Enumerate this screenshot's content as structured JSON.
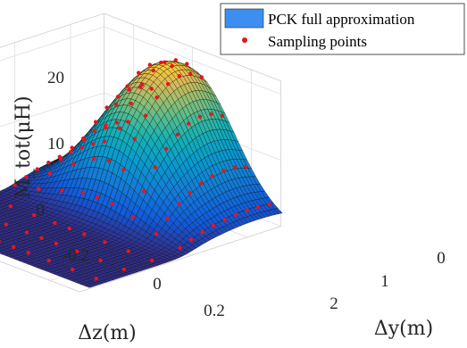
{
  "chart_data": {
    "type": "surface3d",
    "zlabel": "M_tot(μH)",
    "xlabel": "Δz(m)",
    "ylabel": "Δy(m)",
    "z_ticks": [
      "0",
      "10",
      "20"
    ],
    "x_ticks": [
      "-0.2",
      "0",
      "0.2"
    ],
    "y_ticks": [
      "0",
      "1",
      "2"
    ],
    "zlim": [
      0,
      22
    ],
    "xlim": [
      -0.3,
      0.3
    ],
    "ylim": [
      -0.6,
      3
    ],
    "grid": true,
    "legend_position": "top-right",
    "legend": [
      {
        "label": "PCK full approximation",
        "kind": "surface",
        "color": "#3c8ff0"
      },
      {
        "label": "Sampling points",
        "kind": "marker",
        "color": "#e8141c"
      }
    ],
    "colormap": "parula",
    "description_of_surface": "flat near 0 for Δy > 1.2; rises to a dome peaking ~22 μH around Δz≈0, Δy≈-0.2 along the back edge"
  }
}
